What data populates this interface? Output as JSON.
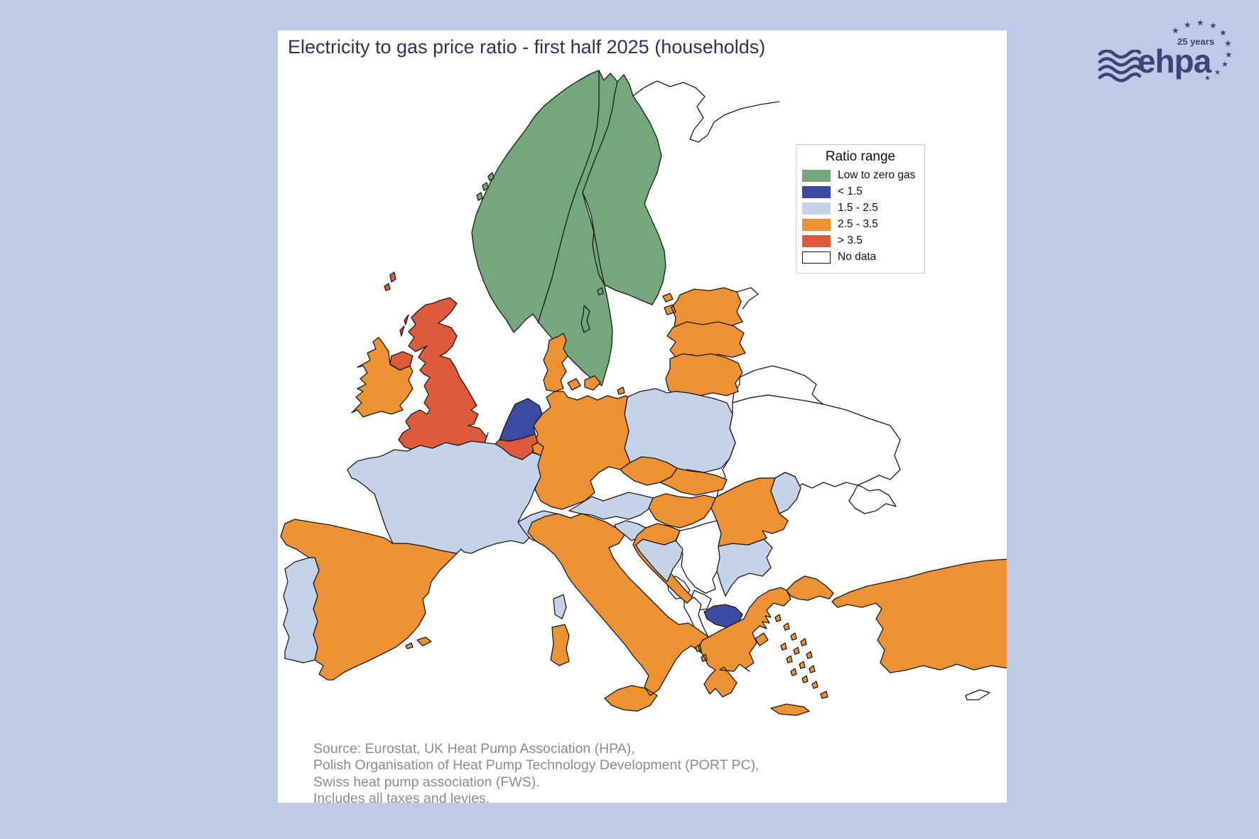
{
  "title": "Electricity to gas price ratio - first half 2025 (households)",
  "colors": {
    "background": "#bfcbe6",
    "panel": "#ffffff",
    "title_text": "#2d3262",
    "source_text": "#8c8c8c",
    "logo": "#3c4478",
    "border_stroke": "#1a1a1a"
  },
  "legend": {
    "title": "Ratio range",
    "items": [
      {
        "key": "low",
        "label": "Low to zero gas",
        "color": "#74a87a"
      },
      {
        "key": "lt15",
        "label": "< 1.5",
        "color": "#3b4ba1"
      },
      {
        "key": "mid",
        "label": "1.5 - 2.5",
        "color": "#c4d2ea"
      },
      {
        "key": "high",
        "label": "2.5 - 3.5",
        "color": "#ec9235"
      },
      {
        "key": "vhigh",
        "label": "> 3.5",
        "color": "#de5a3c"
      },
      {
        "key": "nodata",
        "label": "No data",
        "color": "#ffffff"
      }
    ]
  },
  "footer": {
    "lines": [
      "Source: Eurostat, UK Heat Pump Association (HPA),",
      "Polish Organisation of Heat Pump Technology Development (PORT PC),",
      "Swiss heat pump association (FWS).",
      "Includes all taxes and levies."
    ]
  },
  "logo": {
    "word": "ehpa",
    "anniversary": "25 years"
  },
  "map": {
    "countries": [
      {
        "id": "fennoscandia",
        "label": "Norway / Sweden / Finland",
        "category": "low"
      },
      {
        "id": "gotland",
        "label": "Gotland",
        "category": "low"
      },
      {
        "id": "norway_isles",
        "label": "Norwegian islands",
        "category": "low"
      },
      {
        "id": "denmark",
        "label": "Denmark",
        "category": "high"
      },
      {
        "id": "estonia",
        "label": "Estonia",
        "category": "high"
      },
      {
        "id": "latvia",
        "label": "Latvia",
        "category": "high"
      },
      {
        "id": "lithuania",
        "label": "Lithuania",
        "category": "high"
      },
      {
        "id": "kaliningrad",
        "label": "Kaliningrad",
        "category": "nodata"
      },
      {
        "id": "poland",
        "label": "Poland",
        "category": "mid"
      },
      {
        "id": "germany",
        "label": "Germany",
        "category": "high"
      },
      {
        "id": "netherlands",
        "label": "Netherlands",
        "category": "lt15"
      },
      {
        "id": "belgium",
        "label": "Belgium",
        "category": "vhigh"
      },
      {
        "id": "luxembourg",
        "label": "Luxembourg",
        "category": "high"
      },
      {
        "id": "czechia",
        "label": "Czechia",
        "category": "high"
      },
      {
        "id": "slovakia",
        "label": "Slovakia",
        "category": "high"
      },
      {
        "id": "austria",
        "label": "Austria",
        "category": "mid"
      },
      {
        "id": "switzerland",
        "label": "Switzerland",
        "category": "mid"
      },
      {
        "id": "hungary",
        "label": "Hungary",
        "category": "high"
      },
      {
        "id": "slovenia",
        "label": "Slovenia",
        "category": "mid"
      },
      {
        "id": "croatia",
        "label": "Croatia",
        "category": "high"
      },
      {
        "id": "bosnia",
        "label": "Bosnia and Herzegovina",
        "category": "mid"
      },
      {
        "id": "serbia",
        "label": "Serbia",
        "category": "nodata"
      },
      {
        "id": "montenegro",
        "label": "Montenegro",
        "category": "nodata"
      },
      {
        "id": "kosovo",
        "label": "Kosovo",
        "category": "nodata"
      },
      {
        "id": "albania",
        "label": "Albania",
        "category": "nodata"
      },
      {
        "id": "macedonia",
        "label": "North Macedonia",
        "category": "lt15"
      },
      {
        "id": "bulgaria",
        "label": "Bulgaria",
        "category": "mid"
      },
      {
        "id": "romania",
        "label": "Romania",
        "category": "high"
      },
      {
        "id": "moldova",
        "label": "Moldova",
        "category": "mid"
      },
      {
        "id": "ukraine",
        "label": "Ukraine",
        "category": "nodata"
      },
      {
        "id": "crimea",
        "label": "Crimea",
        "category": "nodata"
      },
      {
        "id": "belarus",
        "label": "Belarus",
        "category": "nodata"
      },
      {
        "id": "uk",
        "label": "United Kingdom",
        "category": "vhigh"
      },
      {
        "id": "ireland",
        "label": "Ireland",
        "category": "high"
      },
      {
        "id": "france",
        "label": "France",
        "category": "mid"
      },
      {
        "id": "corsica",
        "label": "Corsica",
        "category": "mid"
      },
      {
        "id": "spain",
        "label": "Spain",
        "category": "high"
      },
      {
        "id": "portugal",
        "label": "Portugal",
        "category": "mid"
      },
      {
        "id": "italy",
        "label": "Italy",
        "category": "high"
      },
      {
        "id": "greece",
        "label": "Greece",
        "category": "high"
      },
      {
        "id": "turkey",
        "label": "Turkey",
        "category": "high"
      },
      {
        "id": "cyprus",
        "label": "Cyprus",
        "category": "nodata"
      }
    ]
  }
}
